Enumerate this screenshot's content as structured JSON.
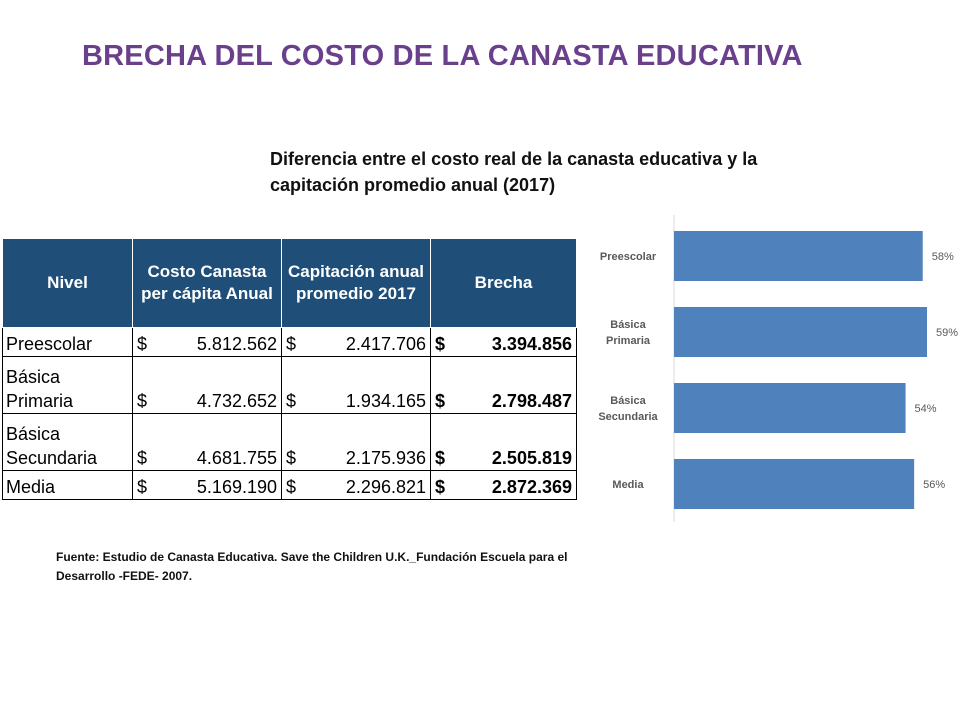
{
  "title": "BRECHA DEL COSTO DE LA CANASTA EDUCATIVA",
  "subtitle": "Diferencia entre el costo real de la canasta educativa y la capitación promedio anual (2017)",
  "table": {
    "headers": [
      "Nivel",
      "Costo Canasta per cápita Anual",
      "Capitación anual promedio 2017",
      "Brecha"
    ],
    "currency": "$",
    "rows": [
      {
        "nivel": "Preescolar",
        "costo": "5.812.562",
        "capitacion": "2.417.706",
        "brecha": "3.394.856"
      },
      {
        "nivel": "Básica Primaria",
        "costo": "4.732.652",
        "capitacion": "1.934.165",
        "brecha": "2.798.487"
      },
      {
        "nivel": "Básica Secundaria",
        "costo": "4.681.755",
        "capitacion": "2.175.936",
        "brecha": "2.505.819"
      },
      {
        "nivel": "Media",
        "costo": "5.169.190",
        "capitacion": "2.296.821",
        "brecha": "2.872.369"
      }
    ]
  },
  "source": "Fuente: Estudio de Canasta Educativa. Save the Children U.K._Fundación Escuela para el Desarrollo -FEDE- 2007.",
  "colors": {
    "bar": "#4f81bd",
    "header": "#1f4e79",
    "title": "#6a3f8c",
    "gap": "#ff0000"
  },
  "chart_data": {
    "type": "bar",
    "orientation": "horizontal",
    "categories": [
      "Preescolar",
      "Básica Primaria",
      "Básica Secundaria",
      "Media"
    ],
    "category_lines": [
      [
        "Preescolar"
      ],
      [
        "Básica",
        "Primaria"
      ],
      [
        "Básica",
        "Secundaria"
      ],
      [
        "Media"
      ]
    ],
    "values": [
      58,
      59,
      54,
      56
    ],
    "value_labels": [
      "58%",
      "59%",
      "54%",
      "56%"
    ],
    "unit": "%",
    "xlim": [
      0,
      59
    ],
    "grid": false,
    "legend": "none"
  }
}
